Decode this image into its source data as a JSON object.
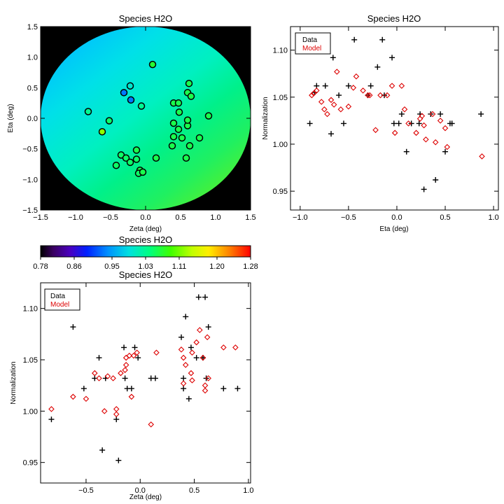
{
  "chart_data": [
    {
      "id": "map",
      "type": "scatter",
      "title": "Species H2O",
      "xlabel": "Zeta (deg)",
      "ylabel": "Eta (deg)",
      "xlim": [
        -1.5,
        1.5
      ],
      "ylim": [
        -1.5,
        1.5
      ],
      "xticks": [
        -1.5,
        -1.0,
        -0.5,
        0.0,
        0.5,
        1.0,
        1.5
      ],
      "yticks": [
        -1.5,
        -1.0,
        -0.5,
        0.0,
        0.5,
        1.0,
        1.5
      ],
      "xtick_labels": [
        "−1.5",
        "−1.0",
        "−0.5",
        "0.0",
        "0.5",
        "1.0",
        "1.5"
      ],
      "ytick_labels": [
        "−1.5",
        "−1.0",
        "−0.5",
        "0.0",
        "0.5",
        "1.0",
        "1.5"
      ],
      "background": "model normalization field within field-of-view circle (radius 1.5 deg); outside black",
      "points": [
        {
          "zeta": -0.82,
          "eta": 0.11,
          "value": 1.03
        },
        {
          "zeta": -0.62,
          "eta": -0.22,
          "value": 1.12
        },
        {
          "zeta": -0.52,
          "eta": -0.04,
          "value": 1.05
        },
        {
          "zeta": -0.31,
          "eta": 0.42,
          "value": 0.93
        },
        {
          "zeta": -0.22,
          "eta": 0.53,
          "value": 1.0
        },
        {
          "zeta": -0.21,
          "eta": 0.3,
          "value": 0.93
        },
        {
          "zeta": -0.06,
          "eta": 0.2,
          "value": 1.03
        },
        {
          "zeta": 0.1,
          "eta": 0.88,
          "value": 1.07
        },
        {
          "zeta": -0.42,
          "eta": -0.77,
          "value": 1.05
        },
        {
          "zeta": -0.35,
          "eta": -0.6,
          "value": 1.05
        },
        {
          "zeta": -0.28,
          "eta": -0.65,
          "value": 1.05
        },
        {
          "zeta": -0.22,
          "eta": -0.72,
          "value": 1.05
        },
        {
          "zeta": -0.13,
          "eta": -0.67,
          "value": 1.05
        },
        {
          "zeta": -0.13,
          "eta": -0.52,
          "value": 1.06
        },
        {
          "zeta": -0.08,
          "eta": -0.85,
          "value": 1.06
        },
        {
          "zeta": -0.1,
          "eta": -0.9,
          "value": 1.05
        },
        {
          "zeta": -0.04,
          "eta": -0.88,
          "value": 1.06
        },
        {
          "zeta": 0.15,
          "eta": -0.65,
          "value": 1.06
        },
        {
          "zeta": 0.38,
          "eta": -0.45,
          "value": 1.06
        },
        {
          "zeta": 0.4,
          "eta": 0.25,
          "value": 1.06
        },
        {
          "zeta": 0.4,
          "eta": -0.08,
          "value": 1.06
        },
        {
          "zeta": 0.4,
          "eta": -0.3,
          "value": 1.06
        },
        {
          "zeta": 0.48,
          "eta": 0.1,
          "value": 1.06
        },
        {
          "zeta": 0.47,
          "eta": 0.25,
          "value": 1.06
        },
        {
          "zeta": 0.47,
          "eta": -0.18,
          "value": 1.06
        },
        {
          "zeta": 0.52,
          "eta": -0.32,
          "value": 1.06
        },
        {
          "zeta": 0.58,
          "eta": -0.65,
          "value": 1.06
        },
        {
          "zeta": 0.6,
          "eta": -0.12,
          "value": 1.06
        },
        {
          "zeta": 0.6,
          "eta": 0.42,
          "value": 1.06
        },
        {
          "zeta": 0.62,
          "eta": 0.57,
          "value": 1.06
        },
        {
          "zeta": 0.6,
          "eta": -0.03,
          "value": 1.06
        },
        {
          "zeta": 0.63,
          "eta": -0.45,
          "value": 1.06
        },
        {
          "zeta": 0.65,
          "eta": 0.36,
          "value": 1.06
        },
        {
          "zeta": 0.77,
          "eta": -0.32,
          "value": 1.06
        },
        {
          "zeta": 0.9,
          "eta": 0.04,
          "value": 1.06
        }
      ]
    },
    {
      "id": "colorbar",
      "type": "heatmap",
      "title": "Species H2O",
      "vmin": 0.78,
      "vmax": 1.28,
      "colormap": "rainbow",
      "tick_values": [
        0.78,
        0.86,
        0.95,
        1.03,
        1.11,
        1.2,
        1.28
      ],
      "tick_labels": [
        "0.78",
        "0.86",
        "0.95",
        "1.03",
        "1.11",
        "1.20",
        "1.28"
      ]
    },
    {
      "id": "eta_plot",
      "type": "scatter",
      "title": "Species H2O",
      "xlabel": "Eta (deg)",
      "ylabel": "Normalization",
      "xlim": [
        -1.1,
        1.05
      ],
      "ylim": [
        0.93,
        1.125
      ],
      "xticks": [
        -1.0,
        -0.5,
        0.0,
        0.5,
        1.0
      ],
      "yticks": [
        0.95,
        1.0,
        1.05,
        1.1
      ],
      "xtick_labels": [
        "−1.0",
        "−0.5",
        "0.0",
        "0.5",
        "1.0"
      ],
      "ytick_labels": [
        "0.95",
        "1.00",
        "1.05",
        "1.10"
      ],
      "legend": {
        "location": "top-left",
        "entries": [
          {
            "label": "Data",
            "color": "#000000"
          },
          {
            "label": "Model",
            "color": "#dd0000"
          }
        ]
      },
      "series": [
        {
          "name": "Data",
          "marker": "plus",
          "color": "#000000",
          "x": [
            -0.83,
            -0.9,
            -0.85,
            -0.74,
            -0.68,
            -0.66,
            -0.6,
            -0.55,
            -0.5,
            -0.44,
            -0.3,
            -0.27,
            -0.2,
            -0.15,
            -0.13,
            -0.05,
            -0.03,
            0.02,
            0.05,
            0.1,
            0.15,
            0.23,
            0.24,
            0.28,
            0.35,
            0.4,
            0.45,
            0.5,
            0.55,
            0.57,
            0.87
          ],
          "y": [
            1.062,
            1.022,
            1.055,
            1.062,
            1.011,
            1.092,
            1.052,
            1.022,
            1.062,
            1.111,
            1.052,
            1.062,
            1.082,
            1.111,
            1.052,
            1.092,
            1.022,
            1.022,
            1.032,
            0.992,
            1.022,
            1.022,
            1.032,
            0.952,
            1.032,
            0.962,
            1.032,
            0.992,
            1.022,
            1.022,
            1.032
          ]
        },
        {
          "name": "Model",
          "marker": "diamond",
          "color": "#dd0000",
          "x": [
            -0.88,
            -0.83,
            -0.86,
            -0.78,
            -0.75,
            -0.72,
            -0.68,
            -0.65,
            -0.62,
            -0.58,
            -0.5,
            -0.45,
            -0.42,
            -0.35,
            -0.3,
            -0.28,
            -0.22,
            -0.17,
            -0.1,
            -0.05,
            -0.02,
            0.05,
            0.08,
            0.12,
            0.2,
            0.24,
            0.26,
            0.28,
            0.3,
            0.37,
            0.4,
            0.45,
            0.5,
            0.52,
            0.88
          ],
          "y": [
            1.052,
            1.057,
            1.054,
            1.045,
            1.037,
            1.032,
            1.047,
            1.042,
            1.077,
            1.037,
            1.04,
            1.06,
            1.072,
            1.057,
            1.052,
            1.052,
            1.015,
            1.052,
            1.052,
            1.062,
            1.012,
            1.062,
            1.037,
            1.022,
            1.012,
            1.027,
            1.03,
            1.02,
            1.005,
            1.032,
            1.002,
            1.025,
            1.017,
            0.997,
            0.987
          ]
        }
      ]
    },
    {
      "id": "zeta_plot",
      "type": "scatter",
      "title": "Species H2O",
      "xlabel": "Zeta (deg)",
      "ylabel": "Normalization",
      "xlim": [
        -0.92,
        1.02
      ],
      "ylim": [
        0.93,
        1.125
      ],
      "xticks": [
        -0.5,
        0.0,
        0.5,
        1.0
      ],
      "yticks": [
        0.95,
        1.0,
        1.05,
        1.1
      ],
      "xtick_labels": [
        "−0.5",
        "0.0",
        "0.5",
        "1.0"
      ],
      "ytick_labels": [
        "0.95",
        "1.00",
        "1.05",
        "1.10"
      ],
      "legend": {
        "location": "top-left",
        "entries": [
          {
            "label": "Data",
            "color": "#000000"
          },
          {
            "label": "Model",
            "color": "#dd0000"
          }
        ]
      },
      "series": [
        {
          "name": "Data",
          "marker": "plus",
          "color": "#000000",
          "x": [
            -0.82,
            -0.62,
            -0.52,
            -0.42,
            -0.38,
            -0.35,
            -0.32,
            -0.22,
            -0.2,
            -0.15,
            -0.14,
            -0.12,
            -0.08,
            -0.05,
            -0.02,
            0.1,
            0.14,
            0.38,
            0.4,
            0.4,
            0.42,
            0.45,
            0.47,
            0.52,
            0.54,
            0.58,
            0.6,
            0.61,
            0.63,
            0.77,
            0.9
          ],
          "y": [
            0.992,
            1.082,
            1.022,
            1.032,
            1.052,
            0.962,
            1.032,
            0.992,
            0.952,
            1.062,
            1.032,
            1.022,
            1.022,
            1.062,
            1.052,
            1.032,
            1.032,
            1.072,
            1.032,
            1.022,
            1.092,
            1.012,
            1.062,
            1.052,
            1.111,
            1.052,
            1.111,
            1.032,
            1.082,
            1.022,
            1.022
          ]
        },
        {
          "name": "Model",
          "marker": "diamond",
          "color": "#dd0000",
          "x": [
            -0.82,
            -0.62,
            -0.5,
            -0.42,
            -0.38,
            -0.33,
            -0.3,
            -0.25,
            -0.22,
            -0.22,
            -0.18,
            -0.14,
            -0.13,
            -0.13,
            -0.1,
            -0.08,
            -0.06,
            -0.03,
            0.1,
            0.15,
            0.38,
            0.4,
            0.4,
            0.42,
            0.47,
            0.48,
            0.48,
            0.52,
            0.55,
            0.58,
            0.6,
            0.6,
            0.62,
            0.63,
            0.77,
            0.88
          ],
          "y": [
            1.002,
            1.014,
            1.012,
            1.037,
            1.032,
            1.0,
            1.034,
            1.032,
            0.997,
            1.002,
            1.037,
            1.04,
            1.045,
            1.052,
            1.054,
            1.014,
            1.054,
            1.057,
            0.987,
            1.057,
            1.06,
            1.052,
            1.027,
            1.045,
            1.037,
            1.03,
            1.057,
            1.067,
            1.079,
            1.052,
            1.025,
            1.02,
            1.072,
            1.032,
            1.062,
            1.062
          ]
        }
      ]
    }
  ]
}
